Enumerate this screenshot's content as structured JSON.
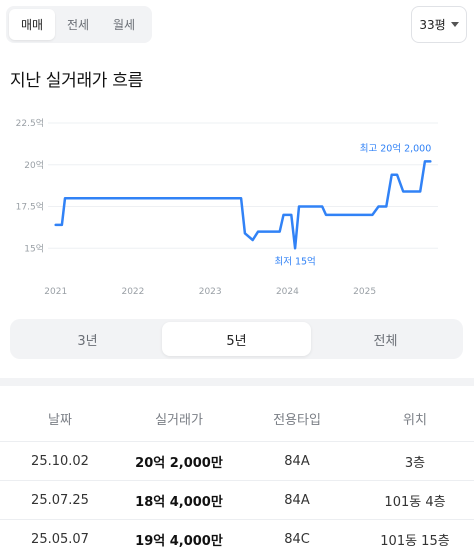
{
  "type_tabs": [
    {
      "label": "매매",
      "active": true
    },
    {
      "label": "전세",
      "active": false
    },
    {
      "label": "월세",
      "active": false
    }
  ],
  "size_select": {
    "value": "33평",
    "icon": "chevron-down-icon"
  },
  "section_title": "지난 실거래가 흐름",
  "chart_data": {
    "type": "line",
    "title": "",
    "xlabel": "",
    "ylabel": "",
    "y_ticks": [
      "22.5억",
      "20억",
      "17.5억",
      "15억"
    ],
    "x_ticks": [
      "2021",
      "2022",
      "2023",
      "2024",
      "2025"
    ],
    "ylim": [
      14.3,
      22.5
    ],
    "xlim": [
      2020.9,
      2025.95
    ],
    "grid": true,
    "color": "#3182f6",
    "series": [
      {
        "x": [
          2021.0,
          2021.08,
          2021.12,
          2023.4,
          2023.45,
          2023.55,
          2023.62,
          2023.75,
          2023.9,
          2023.95,
          2024.05,
          2024.1,
          2024.15,
          2024.2,
          2024.45,
          2024.5,
          2024.6,
          2024.8,
          2025.1,
          2025.18,
          2025.28,
          2025.35,
          2025.42,
          2025.5,
          2025.62,
          2025.72,
          2025.78,
          2025.85
        ],
        "y": [
          16.4,
          16.4,
          18.0,
          18.0,
          15.9,
          15.5,
          16.0,
          16.0,
          16.0,
          17.0,
          17.0,
          15.0,
          17.5,
          17.5,
          17.5,
          17.0,
          17.0,
          17.0,
          17.0,
          17.5,
          17.5,
          19.4,
          19.4,
          18.4,
          18.4,
          18.4,
          20.2,
          20.2
        ]
      }
    ],
    "annotations": [
      {
        "label": "최고 20억 2,000",
        "x": 2025.85,
        "y": 20.2,
        "placement": "above"
      },
      {
        "label": "최저 15억",
        "x": 2024.1,
        "y": 15.0,
        "placement": "below"
      }
    ]
  },
  "range_tabs": [
    {
      "label": "3년",
      "active": false
    },
    {
      "label": "5년",
      "active": true
    },
    {
      "label": "전체",
      "active": false
    }
  ],
  "table": {
    "headers": [
      "날짜",
      "실거래가",
      "전용타입",
      "위치"
    ],
    "rows": [
      [
        "25.10.02",
        "20억 2,000만",
        "84A",
        "3층"
      ],
      [
        "25.07.25",
        "18억 4,000만",
        "84A",
        "101동 4층"
      ],
      [
        "25.05.07",
        "19억 4,000만",
        "84C",
        "101동 15층"
      ]
    ]
  }
}
